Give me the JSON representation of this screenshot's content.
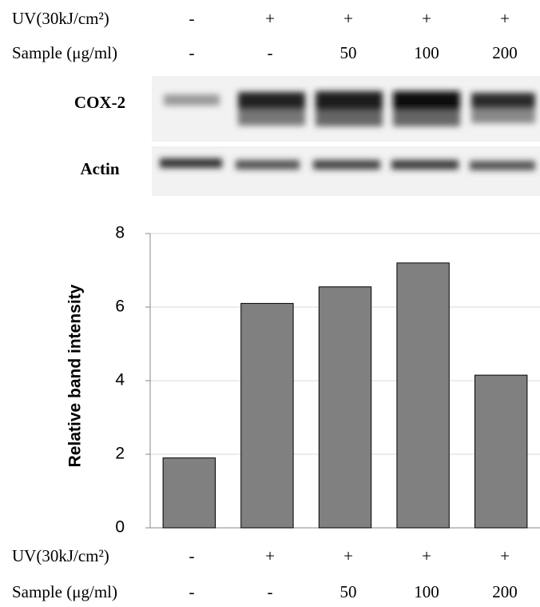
{
  "conditions": {
    "rows": [
      {
        "label": "UV(30kJ/cm²)",
        "values": [
          "-",
          "+",
          "+",
          "+",
          "+"
        ]
      },
      {
        "label": "Sample (μg/ml)",
        "values": [
          "-",
          "-",
          "50",
          "100",
          "200"
        ]
      }
    ]
  },
  "blot": {
    "rows": [
      {
        "label": "COX-2"
      },
      {
        "label": "Actin"
      }
    ]
  },
  "chart_data": {
    "type": "bar",
    "ylabel": "Relative band intensity",
    "categories": [
      null,
      null,
      null,
      null,
      null
    ],
    "values": [
      1.9,
      6.1,
      6.55,
      7.2,
      4.15
    ],
    "color": "#808080",
    "ylim": [
      0,
      8
    ],
    "yticks": [
      0,
      2,
      4,
      6,
      8
    ],
    "grid": true
  }
}
